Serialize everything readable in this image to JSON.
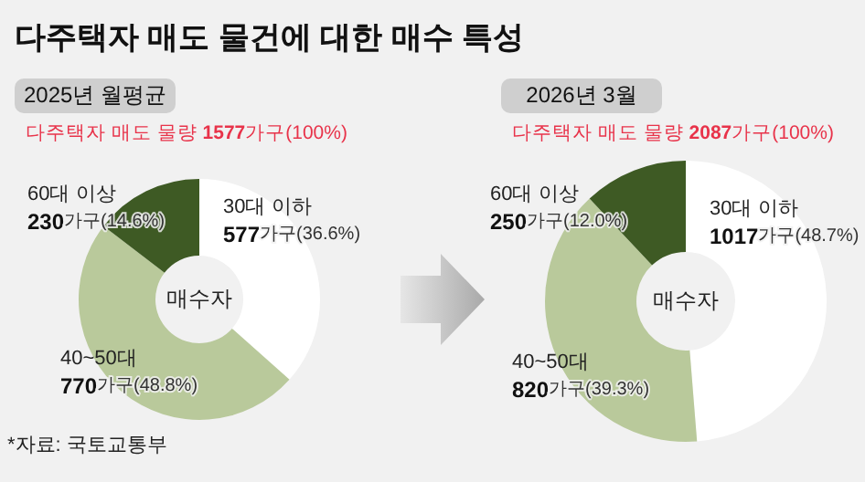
{
  "chart_data": [
    {
      "type": "donut",
      "title": "다주택자 매도 물건에 대한 매수 특성",
      "subtitle": "2025년 월평균",
      "categories": [
        "30대 이하",
        "40~50대",
        "60대 이상"
      ],
      "values": [
        577,
        770,
        230
      ],
      "colors": [
        "#ffffff",
        "#b9c99b",
        "#3e5a24"
      ],
      "value_labels": [
        "577가구(36.6%)",
        "770가구(48.8%)",
        "230가구(14.6%)"
      ],
      "annotations": [
        "다주택자 매도 물량 1577가구(100%)",
        "매수자",
        "*자료: 국토교통부"
      ]
    },
    {
      "type": "donut",
      "subtitle": "2026년 3월",
      "categories": [
        "30대 이하",
        "40~50대",
        "60대 이상"
      ],
      "values": [
        1017,
        820,
        250
      ],
      "colors": [
        "#ffffff",
        "#b9c99b",
        "#3e5a24"
      ],
      "value_labels": [
        "1017가구(48.7%)",
        "820가구(39.3%)",
        "250가구(12.0%)"
      ],
      "annotations": [
        "다주택자 매도 물량 2087가구(100%)",
        "매수자"
      ]
    }
  ]
}
